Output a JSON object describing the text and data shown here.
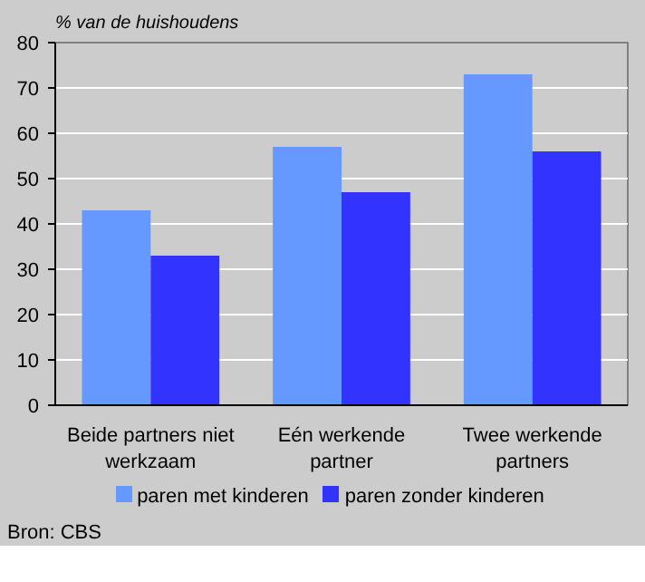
{
  "chart_data": {
    "type": "bar",
    "title": "% van de huishoudens",
    "categories": [
      "Beide partners niet\nwerkzaam",
      "Eén werkende\npartner",
      "Twee werkende\npartners"
    ],
    "series": [
      {
        "name": "paren met kinderen",
        "color": "#6699ff",
        "values": [
          43,
          57,
          73
        ]
      },
      {
        "name": "paren zonder kinderen",
        "color": "#3333ff",
        "values": [
          33,
          47,
          56
        ]
      }
    ],
    "ylim": [
      0,
      80
    ],
    "yticks": [
      0,
      10,
      20,
      30,
      40,
      50,
      60,
      70,
      80
    ],
    "grid": "y",
    "legend": "bottom",
    "annotations": [
      "Bron: CBS"
    ]
  }
}
